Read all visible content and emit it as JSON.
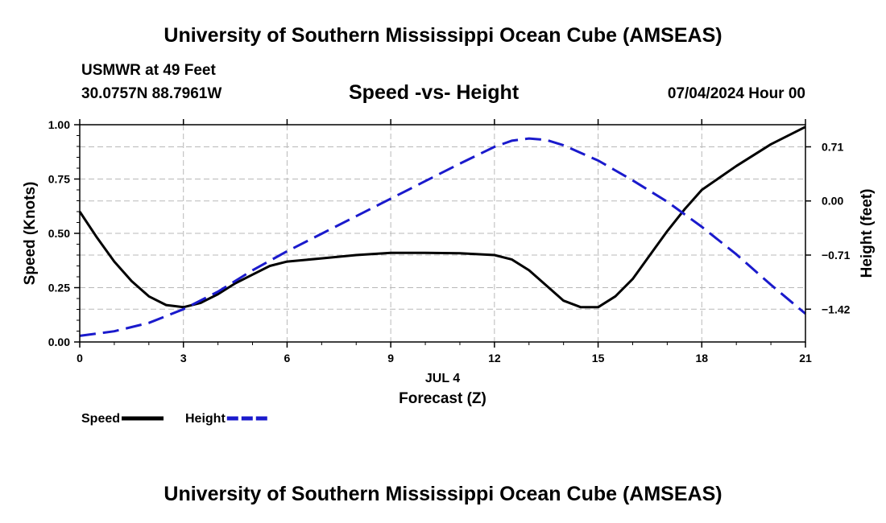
{
  "header": {
    "title": "University of Southern Mississippi Ocean Cube (AMSEAS)",
    "station": "USMWR at 49 Feet",
    "coords": "30.0757N  88.7961W",
    "subtitle": "Speed -vs- Height",
    "datetime": "07/04/2024 Hour 00"
  },
  "footer": {
    "title": "University of Southern Mississippi Ocean Cube (AMSEAS)"
  },
  "chart_data": {
    "type": "line",
    "title": "Speed -vs- Height",
    "xlabel_date": "JUL 4",
    "xlabel": "Forecast (Z)",
    "ylabel": "Speed (Knots)",
    "y2label": "Height (feet)",
    "xlim": [
      0,
      21
    ],
    "ylim": [
      0,
      1.0
    ],
    "y2lim": [
      -1.85,
      1.0
    ],
    "grid": true,
    "legend_position": "bottom-left",
    "x_ticks": [
      0,
      3,
      6,
      9,
      12,
      15,
      18,
      21
    ],
    "x_tick_labels": [
      "0",
      "3",
      "6",
      "9",
      "12",
      "15",
      "18",
      "21"
    ],
    "y_ticks": [
      0,
      0.25,
      0.5,
      0.75,
      1.0
    ],
    "y_tick_labels": [
      "0.00",
      "0.25",
      "0.50",
      "0.75",
      "1.00"
    ],
    "y2_ticks": [
      0.71,
      0.0,
      -0.71,
      -1.42
    ],
    "y2_tick_labels": [
      "0.71",
      "0.00",
      "−0.71",
      "−1.42"
    ],
    "series": [
      {
        "name": "Speed",
        "axis": "left",
        "color": "#000000",
        "style": "solid",
        "x": [
          0,
          0.5,
          1,
          1.5,
          2,
          2.5,
          3,
          3.5,
          4,
          4.5,
          5,
          5.5,
          6,
          7,
          8,
          9,
          10,
          11,
          12,
          12.5,
          13,
          13.5,
          14,
          14.5,
          15,
          15.5,
          16,
          16.5,
          17,
          17.5,
          18,
          19,
          20,
          21
        ],
        "values": [
          0.6,
          0.48,
          0.37,
          0.28,
          0.21,
          0.17,
          0.16,
          0.18,
          0.22,
          0.27,
          0.31,
          0.35,
          0.37,
          0.385,
          0.4,
          0.41,
          0.41,
          0.408,
          0.4,
          0.38,
          0.33,
          0.26,
          0.19,
          0.16,
          0.16,
          0.21,
          0.29,
          0.4,
          0.51,
          0.61,
          0.7,
          0.81,
          0.91,
          0.99
        ]
      },
      {
        "name": "Height",
        "axis": "right",
        "color": "#1a1acc",
        "style": "dashed",
        "x": [
          0,
          1,
          2,
          3,
          4,
          5,
          6,
          7,
          8,
          9,
          10,
          11,
          12,
          12.5,
          13,
          13.5,
          14,
          15,
          16,
          17,
          18,
          19,
          20,
          21
        ],
        "values": [
          -1.77,
          -1.71,
          -1.6,
          -1.42,
          -1.19,
          -0.91,
          -0.66,
          -0.43,
          -0.2,
          0.03,
          0.26,
          0.49,
          0.71,
          0.79,
          0.82,
          0.8,
          0.73,
          0.53,
          0.27,
          -0.01,
          -0.34,
          -0.7,
          -1.1,
          -1.48
        ]
      }
    ]
  }
}
